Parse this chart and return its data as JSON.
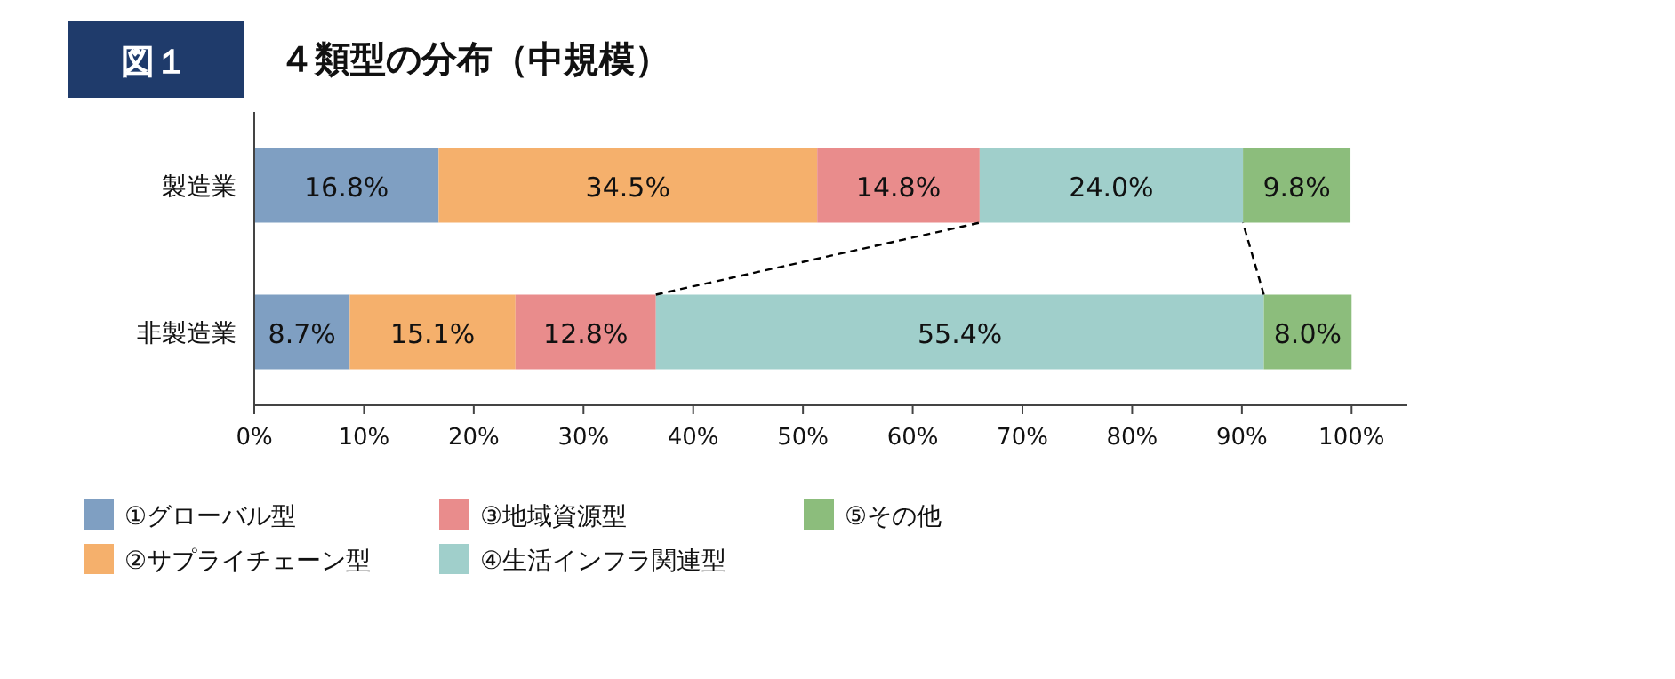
{
  "chart_data": {
    "type": "bar",
    "orientation": "horizontal",
    "stacked": true,
    "title": "４類型の分布（中規模）",
    "annotations": [
      "図１"
    ],
    "categories": [
      "製造業",
      "非製造業"
    ],
    "series": [
      {
        "name": "①グローバル型",
        "color": "#7f9fc2",
        "values": [
          16.8,
          8.7
        ],
        "value_labels": [
          "16.8%",
          "8.7%"
        ]
      },
      {
        "name": "②サプライチェーン型",
        "color": "#f5b06c",
        "values": [
          34.5,
          15.1
        ],
        "value_labels": [
          "34.5%",
          "15.1%"
        ]
      },
      {
        "name": "③地域資源型",
        "color": "#e98c8c",
        "values": [
          14.8,
          12.8
        ],
        "value_labels": [
          "14.8%",
          "12.8%"
        ]
      },
      {
        "name": "④生活インフラ関連型",
        "color": "#a0cfcb",
        "values": [
          24.0,
          55.4
        ],
        "value_labels": [
          "24.0%",
          "55.4%"
        ]
      },
      {
        "name": "⑤その他",
        "color": "#8cbd7c",
        "values": [
          9.8,
          8.0
        ],
        "value_labels": [
          "9.8%",
          "8.0%"
        ]
      }
    ],
    "xlim": [
      0,
      105
    ],
    "xticks": [
      {
        "value": 0,
        "label": "0%"
      },
      {
        "value": 10,
        "label": "10%"
      },
      {
        "value": 20,
        "label": "20%"
      },
      {
        "value": 30,
        "label": "30%"
      },
      {
        "value": 40,
        "label": "40%"
      },
      {
        "value": 50,
        "label": "50%"
      },
      {
        "value": 60,
        "label": "60%"
      },
      {
        "value": 70,
        "label": "70%"
      },
      {
        "value": 80,
        "label": "80%"
      },
      {
        "value": 90,
        "label": "90%"
      },
      {
        "value": 100,
        "label": "100%"
      }
    ],
    "grid": false,
    "legend": "bottom"
  }
}
